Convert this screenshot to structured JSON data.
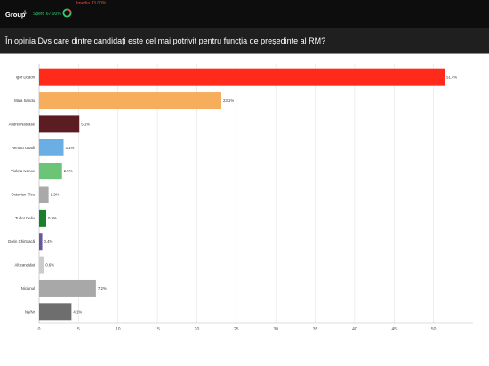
{
  "header": {
    "brand": "Group",
    "brand_mark": "&",
    "spero_label": "Spero 67.00%",
    "imedia_label": "Imedia 33.00%"
  },
  "question": "În opinia Dvs care dintre candidați este cel mai potrivit pentru funcția de președinte al RM?",
  "chart_data": {
    "type": "bar",
    "orientation": "horizontal",
    "categories": [
      "Igor Dodon",
      "Maia Sandu",
      "Andrei Năstase",
      "Renato Usatîi",
      "Violeta Ivanov",
      "Octavian Țîcu",
      "Tudor Deliu",
      "Dorin Chirtoacă",
      "Alt candidat",
      "Niciunul",
      "Nș/Nr"
    ],
    "values": [
      51.4,
      23.1,
      5.1,
      3.1,
      2.9,
      1.2,
      0.9,
      0.4,
      0.6,
      7.2,
      4.1
    ],
    "value_labels": [
      "51.4%",
      "23.1%",
      "5.1%",
      "3.1%",
      "2.9%",
      "1.2%",
      "0.9%",
      "0.4%",
      "0.6%",
      "7.2%",
      "4.1%"
    ],
    "colors": [
      "#ff2a1a",
      "#f6ad5c",
      "#5c1d22",
      "#6aaee4",
      "#6cc476",
      "#a9a9a9",
      "#1a7f2b",
      "#6a55a0",
      "#cccccc",
      "#a8a8a8",
      "#6e6e6e"
    ],
    "xlim": [
      0,
      55
    ],
    "xticks": [
      0,
      5,
      10,
      15,
      20,
      25,
      30,
      35,
      40,
      45,
      50
    ],
    "grid": true,
    "legend": "none"
  }
}
